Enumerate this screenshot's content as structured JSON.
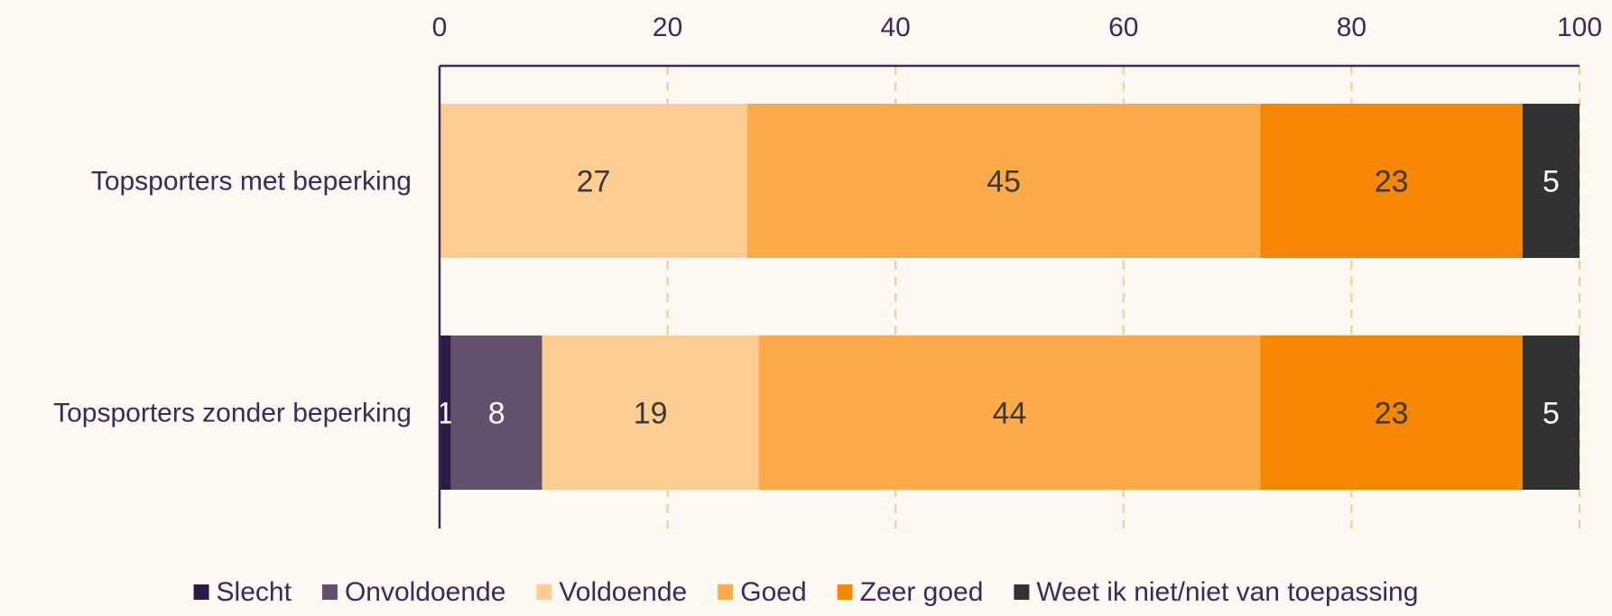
{
  "chart_data": {
    "type": "bar",
    "orientation": "horizontal",
    "stacked": true,
    "categories": [
      "Topsporters met beperking",
      "Topsporters zonder beperking"
    ],
    "series": [
      {
        "name": "Slecht",
        "values": [
          0,
          1
        ],
        "color": "#2e1a47",
        "label_color": "#ffffff"
      },
      {
        "name": "Onvoldoende",
        "values": [
          0,
          8
        ],
        "color": "#62506d",
        "label_color": "#ffffff"
      },
      {
        "name": "Voldoende",
        "values": [
          27,
          19
        ],
        "color": "#fdcd92",
        "label_color": "#3a3a3a"
      },
      {
        "name": "Goed",
        "values": [
          45,
          44
        ],
        "color": "#fdab4a",
        "label_color": "#3a3a3a"
      },
      {
        "name": "Zeer goed",
        "values": [
          23,
          23
        ],
        "color": "#f78702",
        "label_color": "#3a3a3a"
      },
      {
        "name": "Weet ik niet/niet van toepassing",
        "values": [
          5,
          5
        ],
        "color": "#323232",
        "label_color": "#ffffff"
      }
    ],
    "xlim": [
      0,
      100
    ],
    "xticks": [
      0,
      20,
      40,
      60,
      80,
      100
    ],
    "xaxis_position": "top",
    "grid": "vertical dashed",
    "legend_position": "bottom",
    "grid_color": "#f5c98a",
    "axis_color": "#3b2a55"
  }
}
